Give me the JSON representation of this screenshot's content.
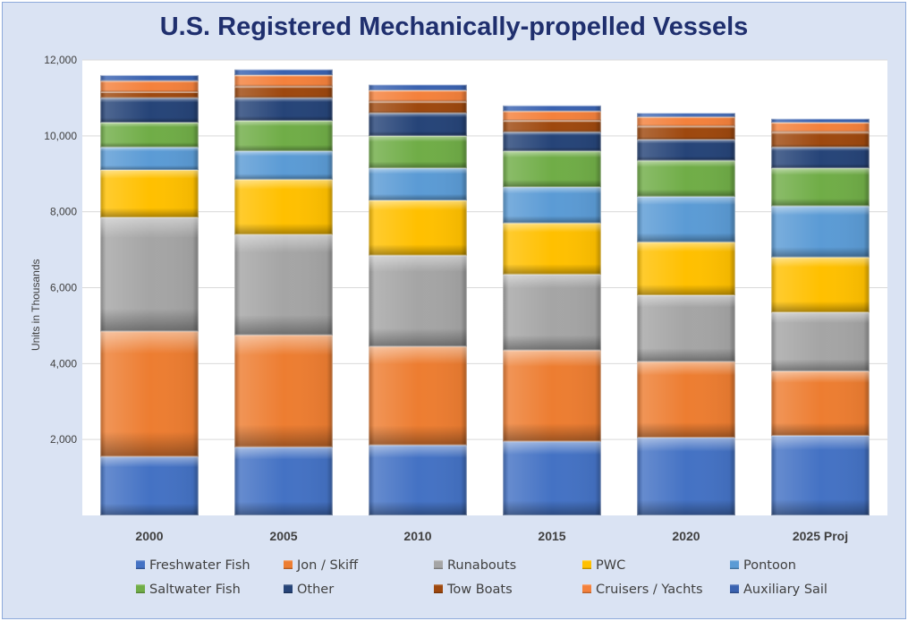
{
  "title": "U.S. Registered Mechanically-propelled Vessels",
  "colors": {
    "background": "#dae3f3",
    "plot": "#ffffff",
    "title": "#1f2f6e"
  },
  "chart_data": {
    "type": "bar",
    "stacked": true,
    "title": "U.S. Registered Mechanically-propelled Vessels",
    "xlabel": "",
    "ylabel": "Units in Thousands",
    "ylim": [
      0,
      12000
    ],
    "yticks": [
      2000,
      4000,
      6000,
      8000,
      10000,
      12000
    ],
    "ytick_labels": [
      "2,000",
      "4,000",
      "6,000",
      "8,000",
      "10,000",
      "12,000"
    ],
    "grid": true,
    "legend_position": "bottom",
    "categories": [
      "2000",
      "2005",
      "2010",
      "2015",
      "2020",
      "2025 Proj"
    ],
    "series": [
      {
        "name": "Freshwater Fish",
        "color": "#4472c4",
        "values": [
          1550,
          1800,
          1850,
          1950,
          2050,
          2100
        ]
      },
      {
        "name": "Jon / Skiff",
        "color": "#ed7d31",
        "values": [
          3300,
          2950,
          2600,
          2400,
          2000,
          1700
        ]
      },
      {
        "name": "Runabouts",
        "color": "#a5a5a5",
        "values": [
          3000,
          2650,
          2400,
          2000,
          1750,
          1550
        ]
      },
      {
        "name": "PWC",
        "color": "#ffc000",
        "values": [
          1250,
          1450,
          1450,
          1350,
          1400,
          1450
        ]
      },
      {
        "name": "Pontoon",
        "color": "#5b9bd5",
        "values": [
          600,
          750,
          850,
          950,
          1200,
          1350
        ]
      },
      {
        "name": "Saltwater Fish",
        "color": "#70ad47",
        "values": [
          650,
          800,
          850,
          950,
          950,
          1000
        ]
      },
      {
        "name": "Other",
        "color": "#264478",
        "values": [
          650,
          600,
          600,
          500,
          550,
          550
        ]
      },
      {
        "name": "Tow Boats",
        "color": "#9e480e",
        "values": [
          150,
          300,
          300,
          300,
          350,
          400
        ]
      },
      {
        "name": "Cruisers / Yachts",
        "color": "#f4813c",
        "values": [
          300,
          300,
          300,
          250,
          250,
          250
        ]
      },
      {
        "name": "Auxiliary Sail",
        "color": "#3a62b0",
        "values": [
          150,
          150,
          150,
          150,
          100,
          100
        ]
      }
    ]
  }
}
